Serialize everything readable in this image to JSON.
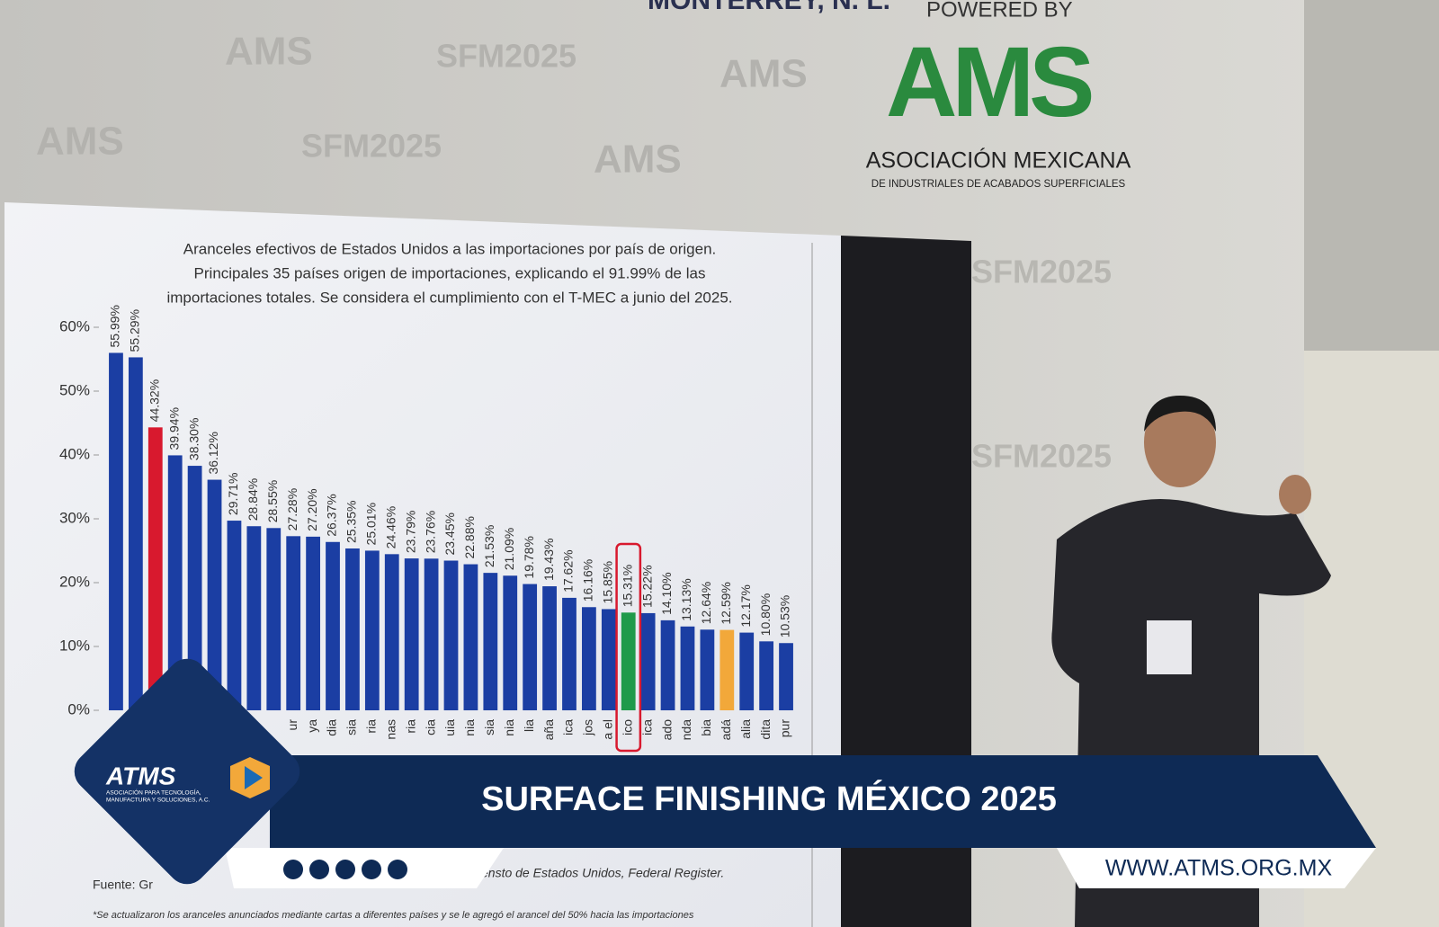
{
  "header": {
    "location": "MONTERREY, N. L.",
    "powered_by": "POWERED BY",
    "logo": "AMS",
    "org_name": "ASOCIACIÓN MEXICANA",
    "org_sub": "DE INDUSTRIALES DE ACABADOS SUPERFICIALES",
    "backdrop_text": "SFM2025"
  },
  "chart_data": {
    "type": "bar",
    "title_lines": [
      "Aranceles efectivos de Estados Unidos a las importaciones por país de origen.",
      "Principales 35 países origen de importaciones, explicando el 91.99% de las",
      "importaciones totales. Se considera el cumplimiento  con el T-MEC a junio del 2025."
    ],
    "categories": [
      null,
      null,
      null,
      null,
      null,
      null,
      null,
      null,
      null,
      "ur",
      "ya",
      "dia",
      "sia",
      "ria",
      "nas",
      "ria",
      "cia",
      "uia",
      "nia",
      "sia",
      "nia",
      "lia",
      "aña",
      "ica",
      "jos",
      "a el",
      "ico",
      "ica",
      "ado",
      "nda",
      "bia",
      "adá",
      "alia",
      "dita",
      "pur"
    ],
    "values": [
      55.99,
      55.29,
      44.32,
      39.94,
      38.3,
      36.12,
      29.71,
      28.84,
      28.55,
      27.28,
      27.2,
      26.37,
      25.35,
      25.01,
      24.46,
      23.79,
      23.76,
      23.45,
      22.88,
      21.53,
      21.09,
      19.78,
      19.43,
      17.62,
      16.16,
      15.85,
      15.31,
      15.22,
      14.1,
      13.13,
      12.64,
      12.59,
      12.17,
      10.8,
      10.53
    ],
    "value_labels": [
      "55.99%",
      "55.29%",
      "44.32%",
      "39.94%",
      "38.30%",
      "36.12%",
      "29.71%",
      "28.84%",
      "28.55%",
      "27.28%",
      "27.20%",
      "26.37%",
      "25.35%",
      "25.01%",
      "24.46%",
      "23.79%",
      "23.76%",
      "23.45%",
      "22.88%",
      "21.53%",
      "21.09%",
      "19.78%",
      "19.43%",
      "17.62%",
      "16.16%",
      "15.85%",
      "15.31%",
      "15.22%",
      "14.10%",
      "13.13%",
      "12.64%",
      "12.59%",
      "12.17%",
      "10.80%",
      "10.53%"
    ],
    "colors": [
      "#1b3ea3",
      "#1b3ea3",
      "#d8192e",
      "#1b3ea3",
      "#1b3ea3",
      "#1b3ea3",
      "#1b3ea3",
      "#1b3ea3",
      "#1b3ea3",
      "#1b3ea3",
      "#1b3ea3",
      "#1b3ea3",
      "#1b3ea3",
      "#1b3ea3",
      "#1b3ea3",
      "#1b3ea3",
      "#1b3ea3",
      "#1b3ea3",
      "#1b3ea3",
      "#1b3ea3",
      "#1b3ea3",
      "#1b3ea3",
      "#1b3ea3",
      "#1b3ea3",
      "#1b3ea3",
      "#1b3ea3",
      "#1f9a4a",
      "#1b3ea3",
      "#1b3ea3",
      "#1b3ea3",
      "#1b3ea3",
      "#f2a83a",
      "#1b3ea3",
      "#1b3ea3",
      "#1b3ea3"
    ],
    "ylim": [
      0,
      60
    ],
    "yticks": [
      {
        "value": 0,
        "label": "0%"
      },
      {
        "value": 10,
        "label": "10%"
      },
      {
        "value": 20,
        "label": "20%"
      },
      {
        "value": 30,
        "label": "30%"
      },
      {
        "value": 40,
        "label": "40%"
      },
      {
        "value": 50,
        "label": "50%"
      },
      {
        "value": 60,
        "label": "60%"
      }
    ],
    "source": "ensto de Estados Unidos, Federal Register.",
    "source_prefix": "Fuente: Gr",
    "footnote": "*Se actualizaron los aranceles anunciados mediante cartas a diferentes países y se le agregó el arancel del 50% hacia las importaciones"
  },
  "banner": {
    "brand": "ATMS",
    "brand_sub_1": "ASOCIACIÓN PARA TECNOLOGÍA,",
    "brand_sub_2": "MANUFACTURA Y SOLUCIONES, A.C.",
    "headline": "SURFACE FINISHING MÉXICO 2025",
    "url": "WWW.ATMS.ORG.MX"
  }
}
